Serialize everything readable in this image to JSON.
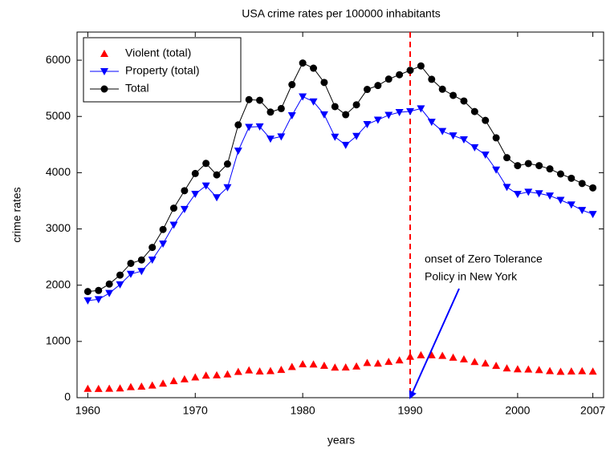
{
  "chart_data": {
    "type": "line",
    "title": "USA crime rates per 100000 inhabitants",
    "x_label": "years",
    "y_label": "crime rates",
    "x": [
      1960,
      1961,
      1962,
      1963,
      1964,
      1965,
      1966,
      1967,
      1968,
      1969,
      1970,
      1971,
      1972,
      1973,
      1974,
      1975,
      1976,
      1977,
      1978,
      1979,
      1980,
      1981,
      1982,
      1983,
      1984,
      1985,
      1986,
      1987,
      1988,
      1989,
      1990,
      1991,
      1992,
      1993,
      1994,
      1995,
      1996,
      1997,
      1998,
      1999,
      2000,
      2001,
      2002,
      2003,
      2004,
      2005,
      2006,
      2007
    ],
    "series": [
      {
        "name": "Violent (total)",
        "color": "#ff0000",
        "marker": "triangle-up",
        "line": false,
        "values": [
          161,
          158,
          162,
          168,
          190,
          200,
          220,
          253,
          298,
          329,
          364,
          396,
          401,
          417,
          461,
          488,
          468,
          476,
          498,
          549,
          597,
          594,
          571,
          538,
          539,
          557,
          620,
          610,
          640,
          666,
          730,
          758,
          758,
          747,
          714,
          685,
          637,
          611,
          568,
          523,
          507,
          505,
          494,
          476,
          463,
          469,
          474,
          467
        ]
      },
      {
        "name": "Property (total)",
        "color": "#0000ff",
        "marker": "triangle-down",
        "line": true,
        "values": [
          1726,
          1748,
          1858,
          2012,
          2198,
          2249,
          2451,
          2737,
          3072,
          3351,
          3621,
          3769,
          3560,
          3738,
          4389,
          4811,
          4819,
          4602,
          4642,
          5017,
          5353,
          5264,
          5033,
          4637,
          4492,
          4650,
          4860,
          4940,
          5024,
          5075,
          5090,
          5140,
          4902,
          4737,
          4660,
          4590,
          4450,
          4319,
          4052,
          3744,
          3618,
          3658,
          3631,
          3591,
          3514,
          3432,
          3334,
          3263
        ]
      },
      {
        "name": "Total",
        "color": "#000000",
        "marker": "circle",
        "line": true,
        "values": [
          1887,
          1906,
          2020,
          2180,
          2388,
          2449,
          2671,
          2990,
          3370,
          3680,
          3985,
          4165,
          3961,
          4155,
          4850,
          5299,
          5287,
          5078,
          5140,
          5566,
          5950,
          5858,
          5604,
          5175,
          5031,
          5207,
          5480,
          5550,
          5664,
          5741,
          5820,
          5898,
          5660,
          5484,
          5374,
          5275,
          5087,
          4930,
          4620,
          4267,
          4125,
          4163,
          4125,
          4067,
          3977,
          3901,
          3808,
          3730
        ]
      }
    ],
    "xlim": [
      1959,
      2008
    ],
    "ylim": [
      0,
      6500
    ],
    "xticks": [
      1960,
      1970,
      1980,
      1990,
      2000,
      2007
    ],
    "yticks": [
      0,
      1000,
      2000,
      3000,
      4000,
      5000,
      6000
    ],
    "legend": "upper-left",
    "vline": {
      "x": 1990,
      "color": "#ff0000"
    },
    "annotation": {
      "lines": [
        "onset of Zero Tolerance",
        "Policy in New York"
      ],
      "arrow_to": [
        1990,
        0
      ],
      "color": "#0000ff"
    }
  }
}
